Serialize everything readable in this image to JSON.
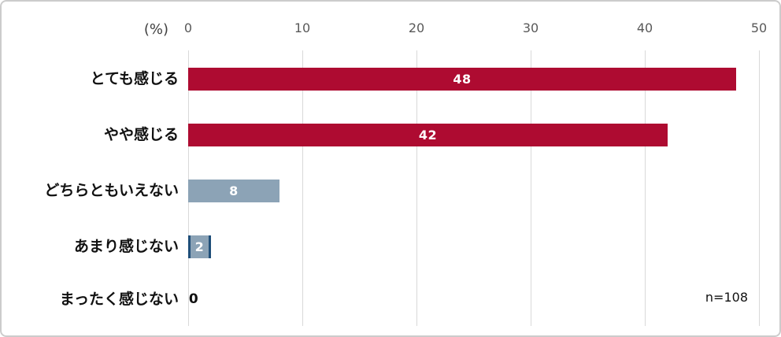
{
  "frame": {
    "background": "#ffffff",
    "border_color": "#cccccc"
  },
  "axis": {
    "unit_label": "(%)",
    "tick_color": "#595959",
    "gridline_color": "#d9d9d9"
  },
  "annotation": {
    "sample_size": "n=108"
  },
  "chart_data": {
    "type": "bar",
    "orientation": "horizontal",
    "title": "",
    "xlabel": "(%)",
    "ylabel": "",
    "xlim": [
      0,
      50
    ],
    "ticks": [
      0,
      10,
      20,
      30,
      40,
      50
    ],
    "grid": true,
    "legend": false,
    "categories": [
      "とても感じる",
      "やや感じる",
      "どちらともいえない",
      "あまり感じない",
      "まったく感じない"
    ],
    "values": [
      48,
      42,
      8,
      2,
      0
    ],
    "bars": [
      {
        "label": "とても感じる",
        "value": 48,
        "color": "#ae0b31",
        "label_color": "#ffffff"
      },
      {
        "label": "やや感じる",
        "value": 42,
        "color": "#ae0b31",
        "label_color": "#ffffff"
      },
      {
        "label": "どちらともいえない",
        "value": 8,
        "color": "#8ca3b6",
        "label_color": "#ffffff"
      },
      {
        "label": "あまり感じない",
        "value": 2,
        "color": "#8ca3b6",
        "label_color": "#ffffff",
        "edge_color": "#1f4e79"
      },
      {
        "label": "まったく感じない",
        "value": 0,
        "color": null,
        "label_color": "#111111"
      }
    ],
    "annotations": [
      "n=108"
    ]
  }
}
